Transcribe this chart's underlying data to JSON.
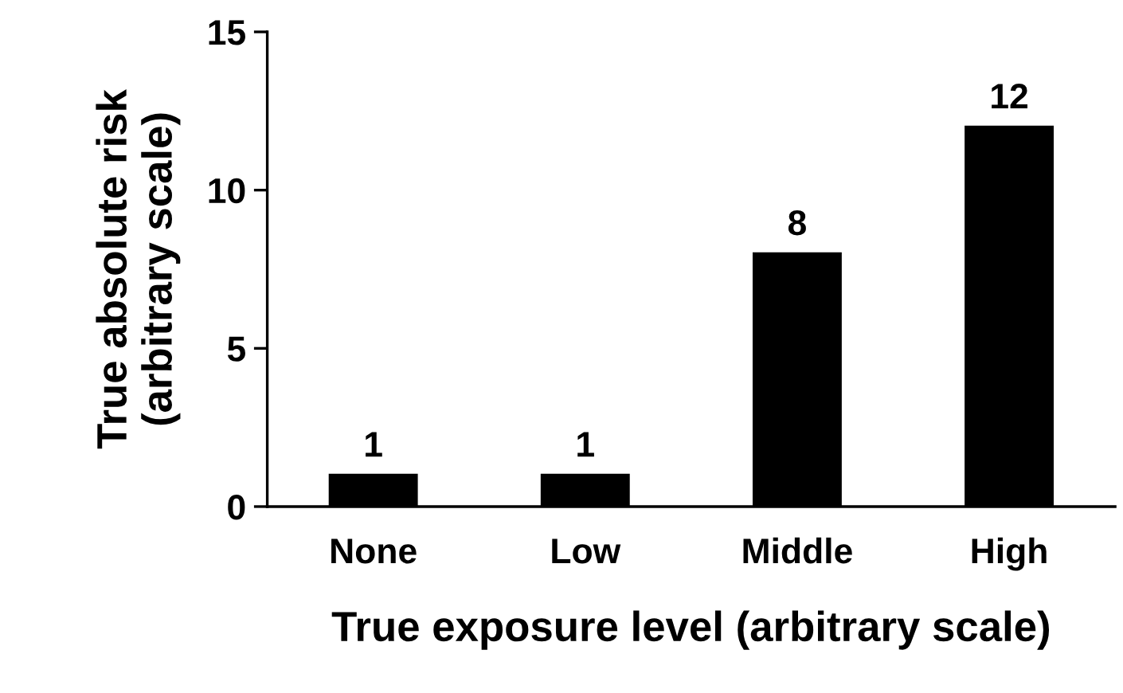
{
  "chart_data": {
    "type": "bar",
    "xlabel": "True exposure level (arbitrary scale)",
    "ylabel": "True absolute risk\n(arbitrary scale)",
    "categories": [
      "None",
      "Low",
      "Middle",
      "High"
    ],
    "values": [
      1,
      1,
      8,
      12
    ],
    "color": "#000000",
    "ylim": [
      0,
      15
    ],
    "yticks": [
      0,
      5,
      10,
      15
    ],
    "data_labels": true,
    "grid": false,
    "legend": false
  }
}
